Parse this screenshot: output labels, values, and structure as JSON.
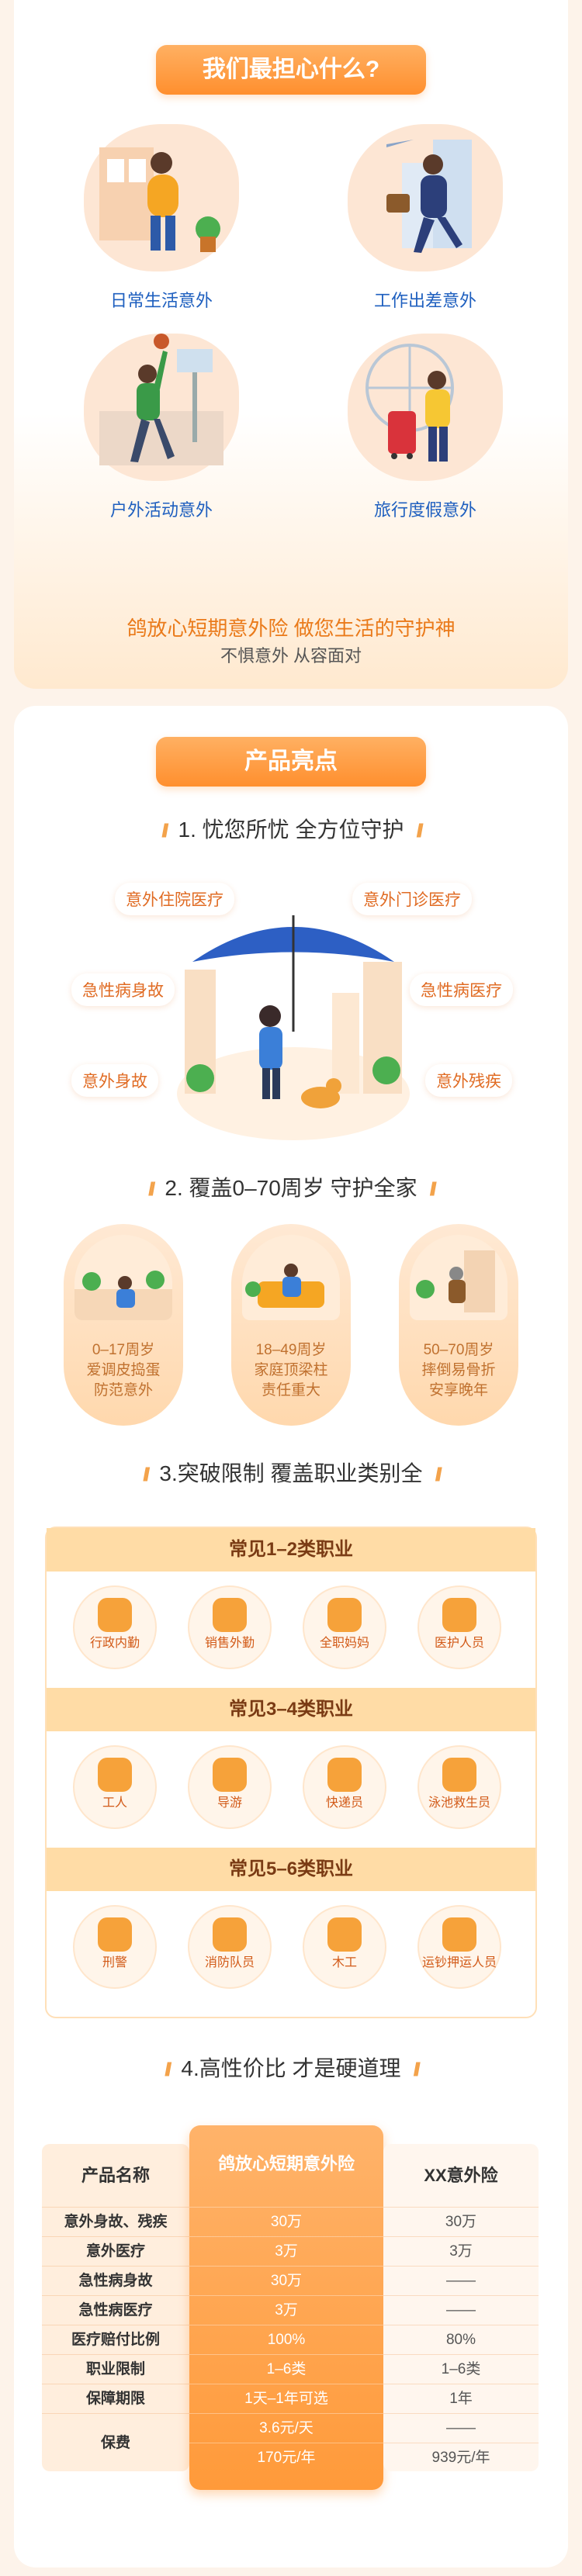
{
  "risks": {
    "title": "我们最担心什么?",
    "items": [
      {
        "label": "日常生活意外"
      },
      {
        "label": "工作出差意外"
      },
      {
        "label": "户外活动意外"
      },
      {
        "label": "旅行度假意外"
      }
    ],
    "slogan": "鸽放心短期意外险 做您生活的守护神",
    "slogan2": "不惧意外 从容面对"
  },
  "highlights": {
    "title": "产品亮点",
    "s1": "1. 忧您所忧  全方位守护",
    "tags": [
      "意外住院医疗",
      "意外门诊医疗",
      "急性病身故",
      "急性病医疗",
      "意外身故",
      "意外残疾"
    ],
    "s2": "2. 覆盖0–70周岁 守护全家",
    "ages": [
      {
        "range": "0–17周岁",
        "l1": "爱调皮捣蛋",
        "l2": "防范意外"
      },
      {
        "range": "18–49周岁",
        "l1": "家庭顶梁柱",
        "l2": "责任重大"
      },
      {
        "range": "50–70周岁",
        "l1": "摔倒易骨折",
        "l2": "安享晚年"
      }
    ],
    "s3": "3.突破限制 覆盖职业类别全",
    "groups": [
      {
        "title": "常见1–2类职业",
        "jobs": [
          "行政内勤",
          "销售外勤",
          "全职妈妈",
          "医护人员"
        ]
      },
      {
        "title": "常见3–4类职业",
        "jobs": [
          "工人",
          "导游",
          "快递员",
          "泳池救生员"
        ]
      },
      {
        "title": "常见5–6类职业",
        "jobs": [
          "刑警",
          "消防队员",
          "木工",
          "运钞押运人员"
        ]
      }
    ],
    "s4": "4.高性价比 才是硬道理"
  },
  "comparison": {
    "headers": [
      "产品名称",
      "鸽放心短期意外险",
      "XX意外险"
    ],
    "rows": [
      {
        "name": "意外身故、残疾",
        "ours": "30万",
        "theirs": "30万"
      },
      {
        "name": "意外医疗",
        "ours": "3万",
        "theirs": "3万"
      },
      {
        "name": "急性病身故",
        "ours": "30万",
        "theirs": "——"
      },
      {
        "name": "急性病医疗",
        "ours": "3万",
        "theirs": "——"
      },
      {
        "name": "医疗赔付比例",
        "ours": "100%",
        "theirs": "80%"
      },
      {
        "name": "职业限制",
        "ours": "1–6类",
        "theirs": "1–6类"
      },
      {
        "name": "保障期限",
        "ours": "1天–1年可选",
        "theirs": "1年"
      }
    ],
    "price": {
      "name": "保费",
      "ours1": "3.6元/天",
      "ours2": "170元/年",
      "theirs1": "——",
      "theirs2": "939元/年"
    }
  }
}
